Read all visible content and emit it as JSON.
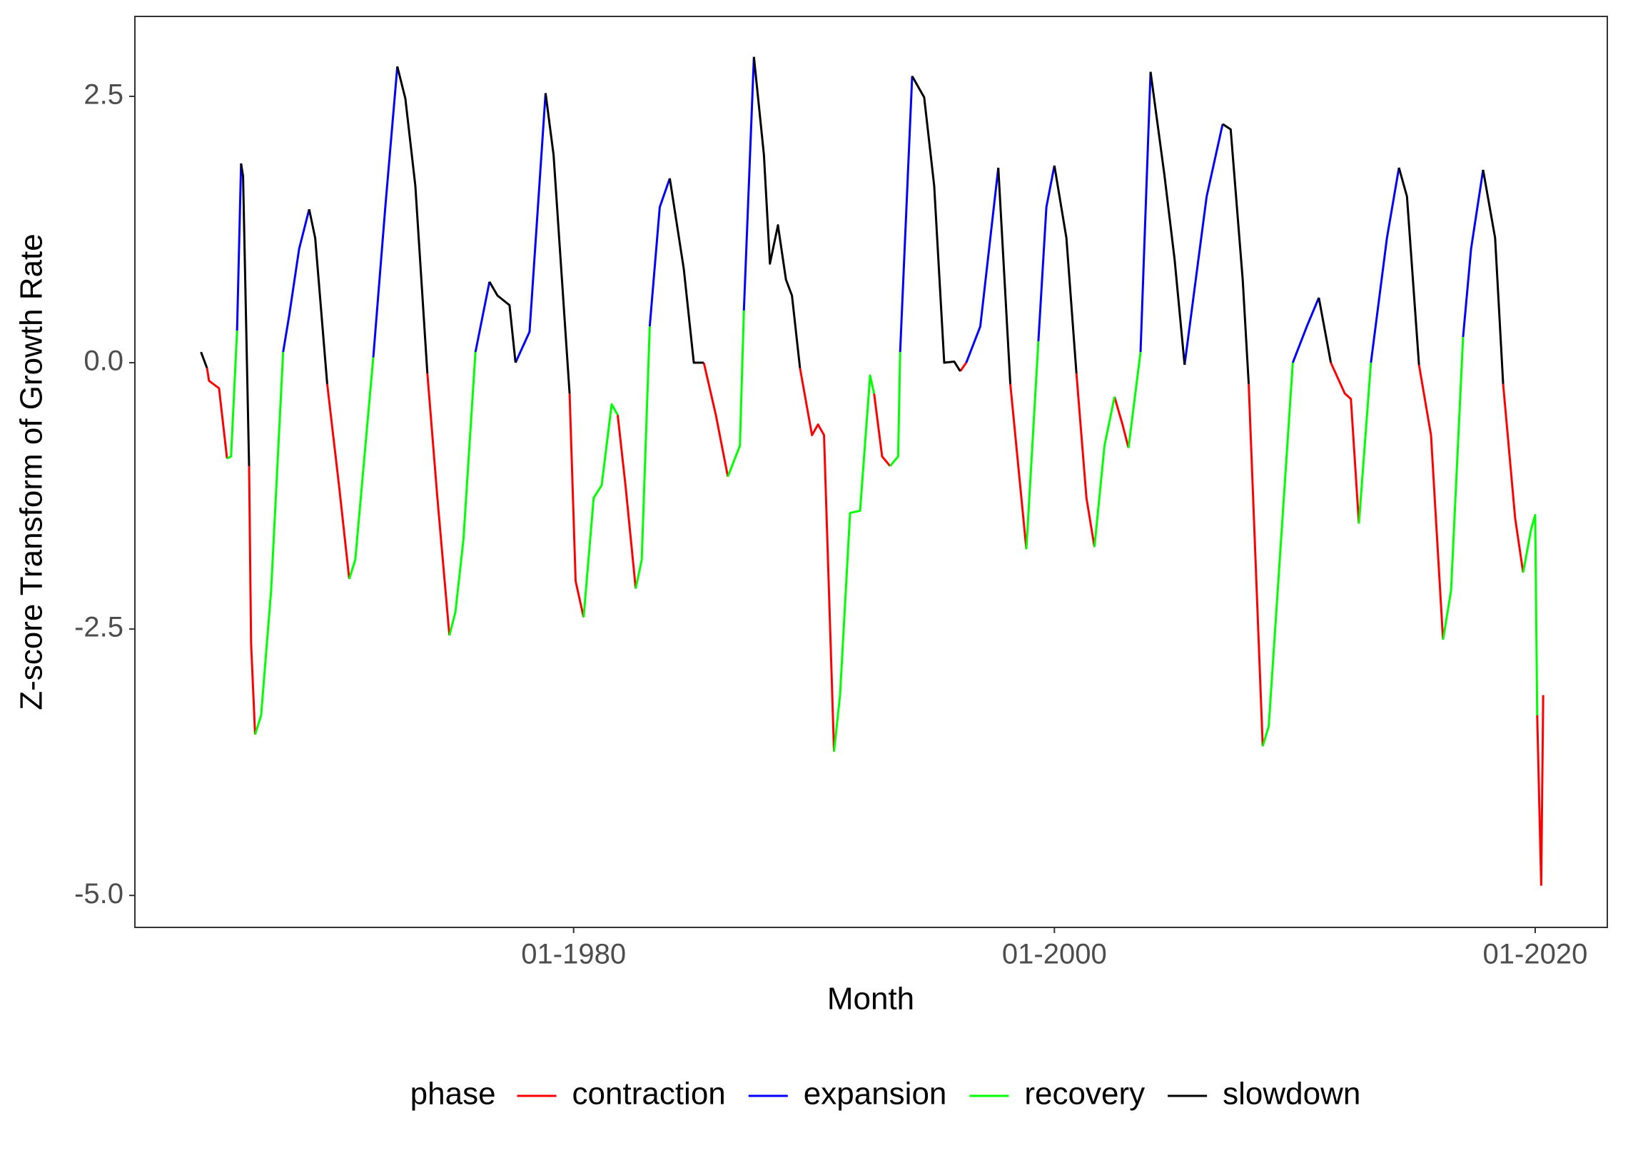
{
  "chart_data": {
    "type": "line",
    "xlabel": "Month",
    "ylabel": "Z-score Transform of Growth Rate",
    "legend_title": "phase",
    "legend_position": "bottom",
    "grid": false,
    "xlim": [
      "10-1961",
      "01-2023"
    ],
    "xticks": [
      "01-1980",
      "01-2000",
      "01-2020"
    ],
    "ylim": [
      -5.3,
      3.25
    ],
    "yticks": [
      {
        "value": -5,
        "label": "-5.0"
      },
      -2.5,
      {
        "value": 0,
        "label": "0.0"
      },
      2.5
    ],
    "x": [
      "07-1964",
      "10-1964",
      "11-1964",
      "04-1965",
      "08-1965",
      "10-1965",
      "01-1966",
      "03-1966",
      "04-1966",
      "07-1966",
      "08-1966",
      "10-1966",
      "01-1967",
      "06-1967",
      "12-1967",
      "03-1968",
      "08-1968",
      "01-1969",
      "04-1969",
      "10-1969",
      "04-1970",
      "09-1970",
      "12-1970",
      "09-1971",
      "03-1972",
      "09-1972",
      "01-1973",
      "06-1973",
      "12-1973",
      "05-1974",
      "11-1974",
      "02-1975",
      "06-1975",
      "12-1975",
      "07-1976",
      "11-1976",
      "05-1977",
      "08-1977",
      "03-1978",
      "11-1978",
      "03-1979",
      "11-1979",
      "02-1980",
      "06-1980",
      "11-1980",
      "03-1981",
      "08-1981",
      "11-1981",
      "03-1982",
      "08-1982",
      "11-1982",
      "03-1983",
      "08-1983",
      "01-1984",
      "08-1984",
      "01-1985",
      "06-1985",
      "12-1985",
      "06-1986",
      "12-1986",
      "02-1987",
      "07-1987",
      "12-1987",
      "03-1988",
      "07-1988",
      "11-1988",
      "02-1989",
      "06-1989",
      "12-1989",
      "03-1990",
      "06-1990",
      "11-1990",
      "02-1991",
      "07-1991",
      "12-1991",
      "05-1992",
      "07-1992",
      "11-1992",
      "03-1993",
      "07-1993",
      "08-1993",
      "02-1994",
      "08-1994",
      "01-1995",
      "06-1995",
      "11-1995",
      "02-1996",
      "05-1996",
      "12-1996",
      "09-1997",
      "03-1998",
      "11-1998",
      "05-1999",
      "09-1999",
      "01-2000",
      "07-2000",
      "12-2000",
      "05-2001",
      "09-2001",
      "02-2002",
      "07-2002",
      "11-2002",
      "02-2003",
      "08-2003",
      "01-2004",
      "08-2004",
      "01-2005",
      "06-2005",
      "05-2006",
      "01-2007",
      "05-2007",
      "11-2007",
      "02-2008",
      "09-2008",
      "12-2008",
      "12-2009",
      "07-2010",
      "01-2011",
      "07-2011",
      "02-2012",
      "05-2012",
      "09-2012",
      "03-2013",
      "11-2013",
      "05-2014",
      "09-2014",
      "03-2015",
      "09-2015",
      "03-2016",
      "07-2016",
      "01-2017",
      "05-2017",
      "11-2017",
      "05-2018",
      "09-2018",
      "03-2019",
      "07-2019",
      "11-2019",
      "01-2020",
      "02-2020",
      "04-2020",
      "05-2020"
    ],
    "series": [
      {
        "name": "contraction",
        "color": "#ff0000",
        "values": [
          null,
          -0.05,
          -0.17,
          -0.24,
          -0.9,
          null,
          null,
          null,
          null,
          -0.97,
          -2.63,
          -3.49,
          null,
          null,
          null,
          null,
          null,
          null,
          null,
          -0.2,
          -1.17,
          -2.03,
          null,
          null,
          null,
          null,
          null,
          null,
          -0.1,
          -1.27,
          -2.56,
          null,
          null,
          null,
          null,
          null,
          null,
          null,
          null,
          null,
          null,
          -0.29,
          -2.05,
          -2.39,
          null,
          null,
          null,
          -0.49,
          -1.17,
          -2.12,
          null,
          null,
          null,
          null,
          null,
          null,
          0,
          -0.49,
          -1.07,
          null,
          null,
          null,
          null,
          null,
          null,
          null,
          null,
          -0.05,
          -0.68,
          -0.58,
          -0.68,
          -3.65,
          null,
          null,
          null,
          null,
          -0.29,
          -0.88,
          -0.97,
          null,
          null,
          null,
          null,
          null,
          null,
          null,
          -0.08,
          0,
          null,
          null,
          -0.2,
          -1.75,
          null,
          null,
          null,
          null,
          -0.1,
          -1.27,
          -1.73,
          null,
          -0.32,
          -0.58,
          -0.8,
          null,
          null,
          null,
          null,
          null,
          null,
          null,
          null,
          null,
          -0.2,
          -3.6,
          null,
          null,
          null,
          null,
          0,
          -0.29,
          -0.34,
          -1.51,
          null,
          null,
          null,
          null,
          -0.02,
          -0.68,
          -2.6,
          null,
          null,
          null,
          null,
          null,
          -0.2,
          -1.46,
          -1.97,
          null,
          null,
          -3.31,
          -4.9,
          -3.12
        ]
      },
      {
        "name": "expansion",
        "color": "#0000ff",
        "values": [
          null,
          null,
          null,
          null,
          null,
          null,
          0.3,
          1.87,
          null,
          null,
          null,
          null,
          null,
          null,
          0.1,
          0.44,
          1.07,
          1.44,
          null,
          null,
          null,
          null,
          null,
          0.05,
          1.46,
          2.78,
          null,
          null,
          null,
          null,
          null,
          null,
          null,
          0.1,
          0.76,
          null,
          null,
          0,
          0.29,
          2.53,
          null,
          null,
          null,
          null,
          null,
          null,
          null,
          null,
          null,
          null,
          null,
          0.34,
          1.46,
          1.73,
          null,
          null,
          null,
          null,
          null,
          null,
          0.49,
          2.87,
          null,
          null,
          null,
          null,
          null,
          null,
          null,
          null,
          null,
          null,
          null,
          null,
          null,
          null,
          null,
          null,
          null,
          null,
          0.1,
          2.69,
          null,
          null,
          null,
          null,
          null,
          0,
          0.34,
          1.83,
          null,
          null,
          0.2,
          1.46,
          1.85,
          null,
          null,
          null,
          null,
          null,
          null,
          null,
          null,
          0.1,
          2.73,
          null,
          null,
          -0.02,
          1.56,
          2.24,
          null,
          null,
          null,
          null,
          null,
          0,
          0.34,
          0.61,
          null,
          null,
          null,
          null,
          0,
          1.17,
          1.83,
          null,
          null,
          null,
          null,
          null,
          0.24,
          1.07,
          1.81,
          null,
          null,
          null,
          null,
          null,
          null,
          null,
          null,
          null
        ]
      },
      {
        "name": "recovery",
        "color": "#00ff00",
        "values": [
          null,
          null,
          null,
          null,
          -0.9,
          -0.88,
          0.3,
          null,
          null,
          null,
          null,
          -3.49,
          -3.31,
          -2.14,
          0.1,
          null,
          null,
          null,
          null,
          null,
          null,
          -2.03,
          -1.85,
          0.05,
          null,
          null,
          null,
          null,
          null,
          null,
          -2.56,
          -2.34,
          -1.66,
          0.1,
          null,
          null,
          null,
          null,
          null,
          null,
          null,
          null,
          null,
          -2.39,
          -1.27,
          -1.15,
          -0.39,
          -0.49,
          null,
          -2.12,
          -1.85,
          0.34,
          null,
          null,
          null,
          null,
          null,
          null,
          -1.07,
          -0.78,
          0.49,
          null,
          null,
          null,
          null,
          null,
          null,
          null,
          null,
          null,
          null,
          -3.65,
          -3.12,
          -1.41,
          -1.39,
          -0.12,
          -0.29,
          null,
          -0.97,
          -0.88,
          0.1,
          null,
          null,
          null,
          null,
          null,
          null,
          null,
          null,
          null,
          null,
          -1.75,
          0.2,
          null,
          null,
          null,
          null,
          null,
          -1.73,
          -0.78,
          -0.32,
          null,
          -0.8,
          0.1,
          null,
          null,
          null,
          null,
          null,
          null,
          null,
          null,
          null,
          -3.6,
          -3.41,
          0,
          null,
          null,
          null,
          null,
          null,
          -1.51,
          0,
          null,
          null,
          null,
          null,
          null,
          -2.6,
          -2.14,
          0.24,
          null,
          null,
          null,
          null,
          null,
          -1.97,
          -1.56,
          -1.43,
          -3.31,
          null,
          null
        ]
      },
      {
        "name": "slowdown",
        "color": "#000000",
        "values": [
          0.1,
          -0.05,
          null,
          null,
          null,
          null,
          null,
          1.87,
          1.75,
          -0.97,
          null,
          null,
          null,
          null,
          null,
          null,
          null,
          1.44,
          1.17,
          -0.2,
          null,
          null,
          null,
          null,
          null,
          2.78,
          2.48,
          1.66,
          -0.1,
          null,
          null,
          null,
          null,
          null,
          0.76,
          0.63,
          0.54,
          0,
          null,
          2.53,
          1.95,
          -0.29,
          null,
          null,
          null,
          null,
          null,
          null,
          null,
          null,
          null,
          null,
          null,
          1.73,
          0.88,
          0,
          0,
          null,
          null,
          null,
          null,
          2.87,
          1.95,
          0.93,
          1.29,
          0.78,
          0.63,
          -0.05,
          null,
          null,
          null,
          null,
          null,
          null,
          null,
          null,
          null,
          null,
          null,
          null,
          null,
          2.69,
          2.49,
          1.66,
          0,
          0.01,
          -0.08,
          null,
          null,
          1.83,
          -0.2,
          null,
          null,
          null,
          1.85,
          1.17,
          -0.1,
          null,
          null,
          null,
          null,
          null,
          null,
          null,
          2.73,
          1.75,
          0.97,
          -0.02,
          null,
          2.24,
          2.19,
          0.78,
          -0.2,
          null,
          null,
          null,
          null,
          0.61,
          0,
          null,
          null,
          null,
          null,
          null,
          1.83,
          1.56,
          -0.02,
          null,
          null,
          null,
          null,
          null,
          1.81,
          1.17,
          -0.2,
          null,
          null,
          null,
          null,
          null,
          null,
          null
        ]
      }
    ]
  }
}
